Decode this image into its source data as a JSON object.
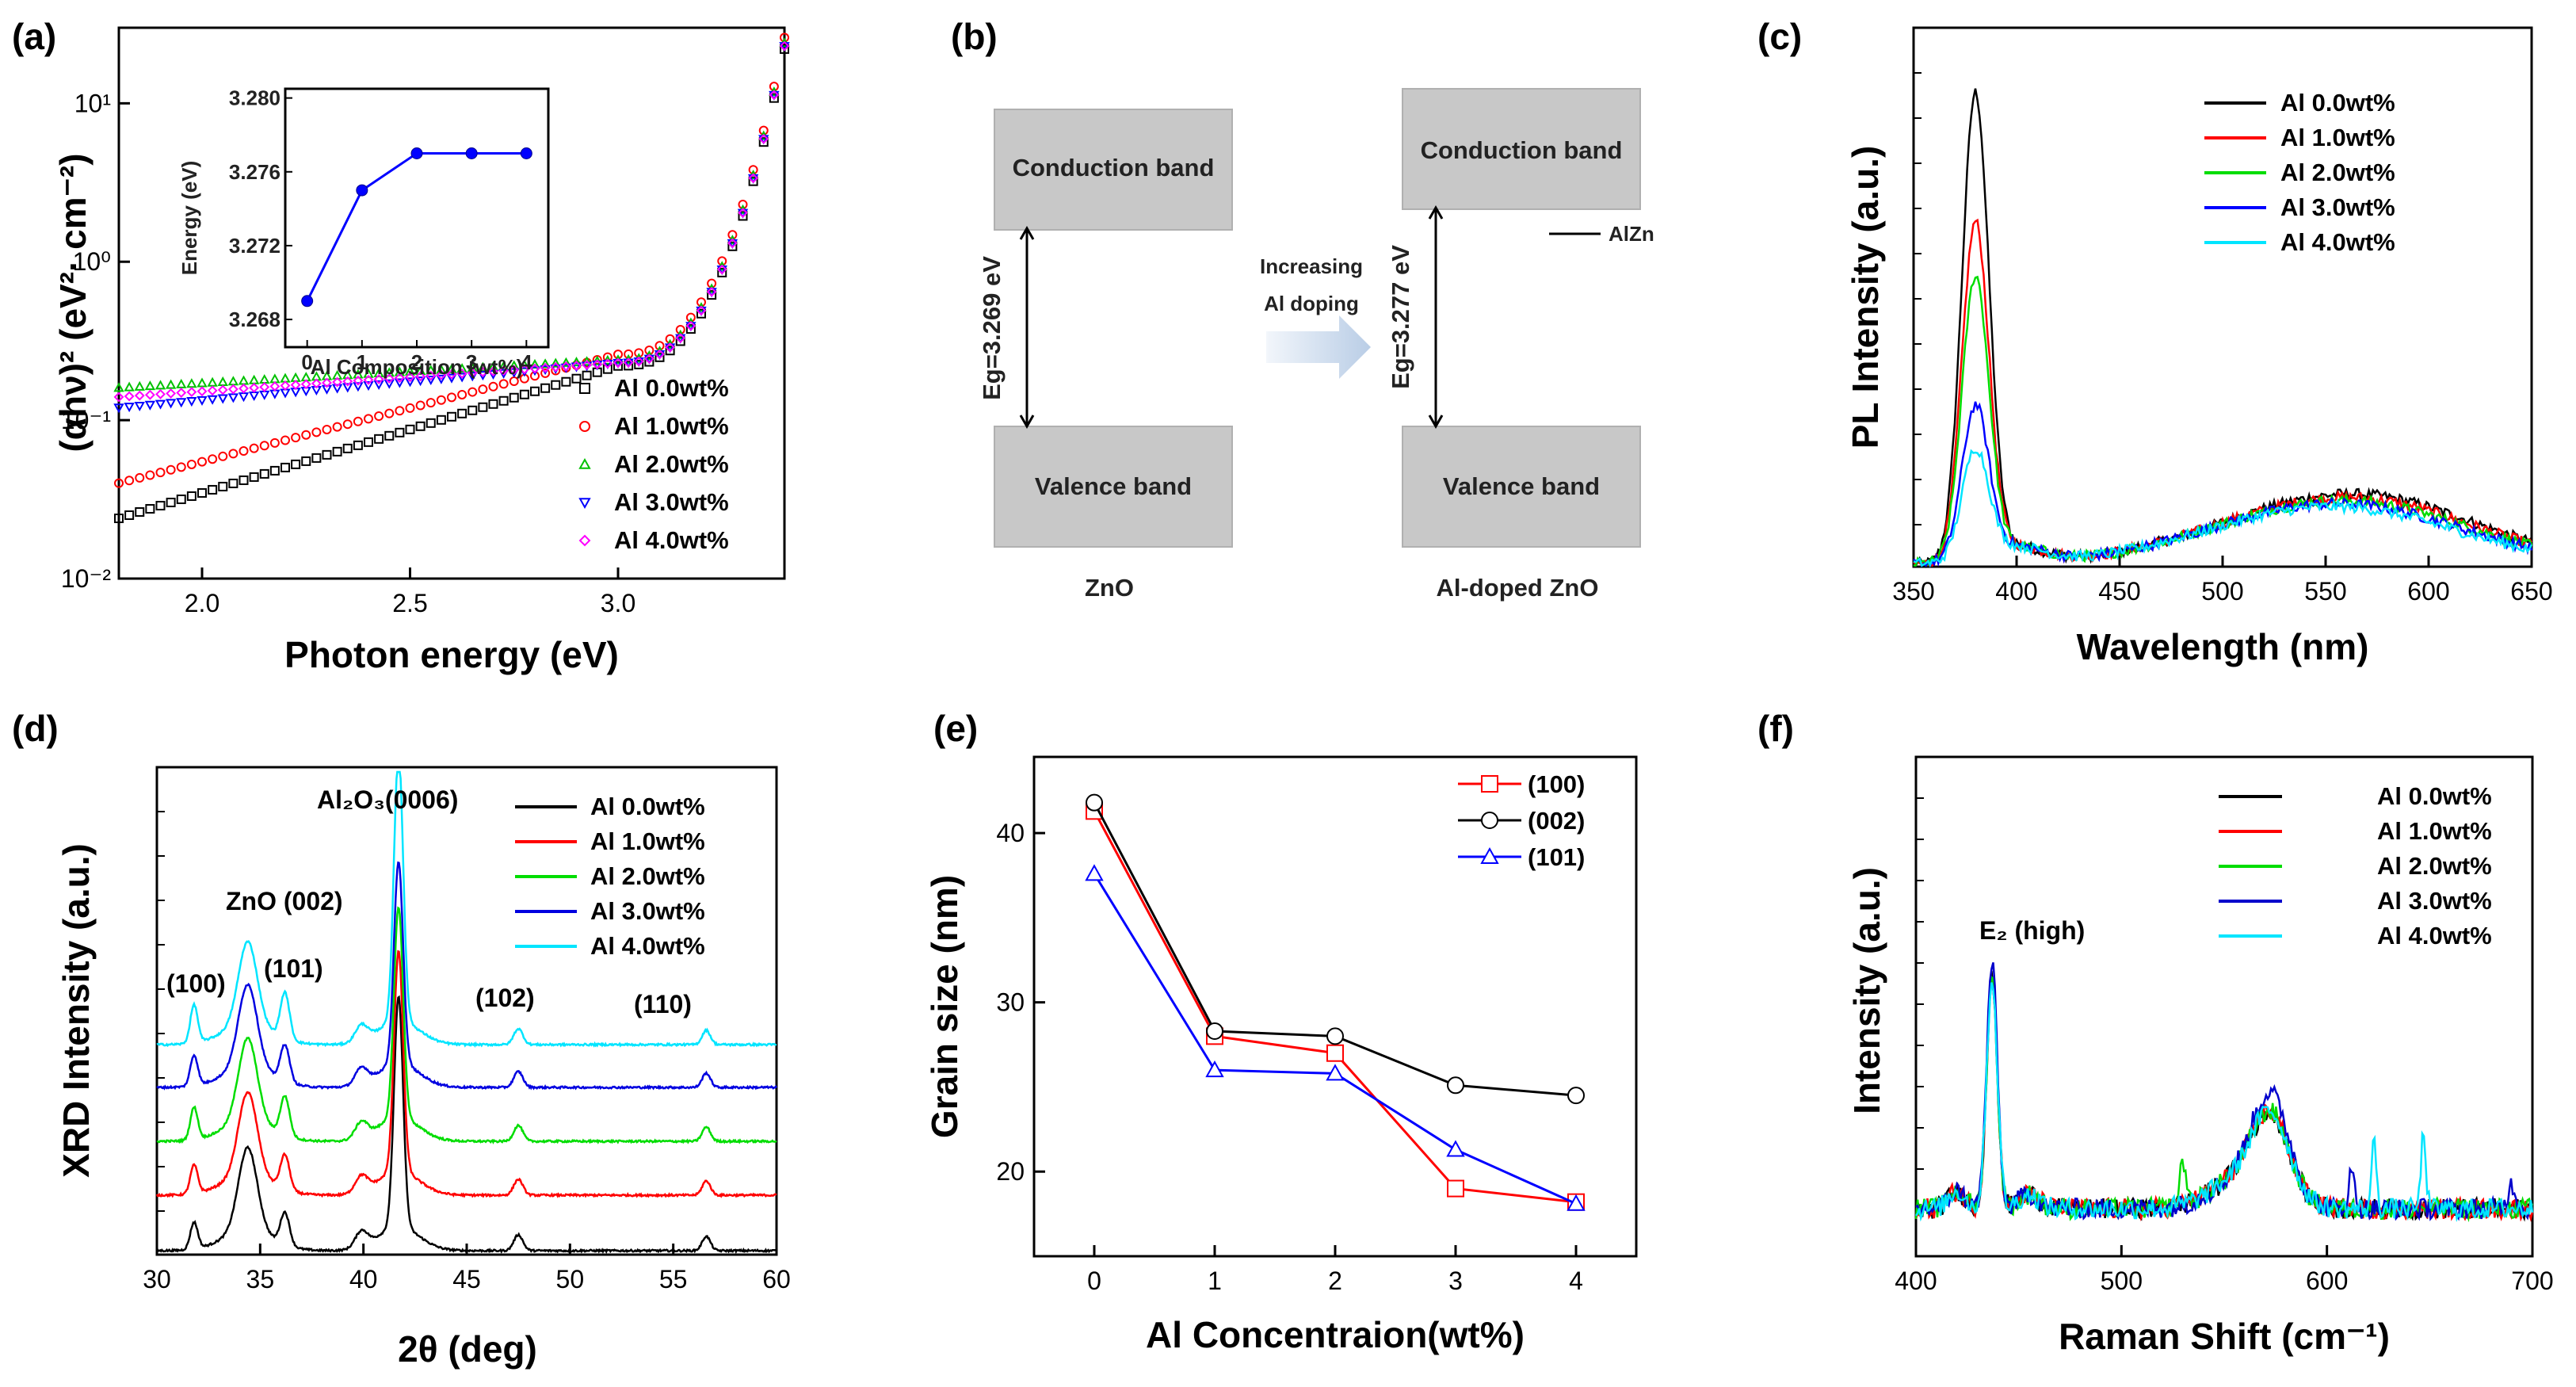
{
  "chart_data": [
    {
      "id": "a",
      "panel": "(a)",
      "type": "scatter",
      "yscale": "log",
      "xlabel": "Photon energy (eV)",
      "ylabel": "(αhν)² (eV²· cm⁻²)",
      "xlim": [
        1.8,
        3.4
      ],
      "ylim": [
        0.01,
        30
      ],
      "xticks": [
        "2.0",
        "2.5",
        "3.0"
      ],
      "yticks": [
        "10⁻²",
        "10⁻¹",
        "10⁰",
        "10¹"
      ],
      "legend_position": "bottom-right",
      "series": [
        {
          "name": "Al 0.0wt%",
          "color": "#000000",
          "marker": "square",
          "start": 0.024,
          "at3": 0.22
        },
        {
          "name": "Al 1.0wt%",
          "color": "#ff0000",
          "marker": "circle",
          "start": 0.04,
          "at3": 0.26
        },
        {
          "name": "Al 2.0wt%",
          "color": "#00c000",
          "marker": "triangle-up",
          "start": 0.16,
          "at3": 0.24
        },
        {
          "name": "Al 3.0wt%",
          "color": "#0000ff",
          "marker": "triangle-down",
          "start": 0.12,
          "at3": 0.23
        },
        {
          "name": "Al 4.0wt%",
          "color": "#ff00ff",
          "marker": "diamond",
          "start": 0.14,
          "at3": 0.23
        }
      ],
      "inset": {
        "type": "line",
        "xlabel": "Al Composition (wt%)",
        "ylabel": "Energy (eV)",
        "x": [
          0,
          1,
          2,
          3,
          4
        ],
        "y": [
          3.269,
          3.275,
          3.277,
          3.277,
          3.277
        ],
        "xlim": [
          -0.4,
          4.4
        ],
        "ylim": [
          3.2665,
          3.2805
        ],
        "xticks": [
          "0",
          "1",
          "2",
          "3",
          "4"
        ],
        "yticks": [
          "3.268",
          "3.272",
          "3.276",
          "3.280"
        ],
        "color": "#0000ff"
      }
    },
    {
      "id": "c",
      "panel": "(c)",
      "type": "line",
      "xlabel": "Wavelength (nm)",
      "ylabel": "PL Intensity (a.u.)",
      "xlim": [
        350,
        650
      ],
      "xticks": [
        "350",
        "400",
        "450",
        "500",
        "550",
        "600",
        "650"
      ],
      "peak_nm": 380,
      "legend_position": "top-right",
      "series": [
        {
          "name": "Al 0.0wt%",
          "color": "#000000",
          "peak": 0.86
        },
        {
          "name": "Al 1.0wt%",
          "color": "#ff0000",
          "peak": 0.62
        },
        {
          "name": "Al 2.0wt%",
          "color": "#00dd00",
          "peak": 0.52
        },
        {
          "name": "Al 3.0wt%",
          "color": "#0000ff",
          "peak": 0.28
        },
        {
          "name": "Al 4.0wt%",
          "color": "#00e5ff",
          "peak": 0.2
        }
      ]
    },
    {
      "id": "d",
      "panel": "(d)",
      "type": "line",
      "xlabel": "2θ (deg)",
      "ylabel": "XRD Intensity (a.u.)",
      "xlim": [
        30,
        60
      ],
      "xticks": [
        "30",
        "35",
        "40",
        "45",
        "50",
        "55",
        "60"
      ],
      "legend_position": "top-right",
      "peaks": {
        "ZnO (100)": 31.8,
        "ZnO (002)": 34.4,
        "ZnO (101)": 36.2,
        "Al2O3 (0006)": 41.7,
        "ZnO (102)": 47.5,
        "ZnO (110)": 56.6
      },
      "annotations": [
        "Al₂O₃(0006)",
        "ZnO (002)",
        "(100)",
        "(101)",
        "(102)",
        "(110)"
      ],
      "series": [
        {
          "name": "Al 0.0wt%",
          "color": "#000000"
        },
        {
          "name": "Al 1.0wt%",
          "color": "#ff0000"
        },
        {
          "name": "Al 2.0wt%",
          "color": "#00dd00"
        },
        {
          "name": "Al 3.0wt%",
          "color": "#0000e0"
        },
        {
          "name": "Al 4.0wt%",
          "color": "#00e5ff"
        }
      ]
    },
    {
      "id": "e",
      "panel": "(e)",
      "type": "line",
      "xlabel": "Al Concentraion(wt%)",
      "ylabel": "Grain size (nm)",
      "xlim": [
        -0.5,
        4.5
      ],
      "ylim": [
        15,
        44.5
      ],
      "xticks": [
        "0",
        "1",
        "2",
        "3",
        "4"
      ],
      "yticks": [
        "20",
        "30",
        "40"
      ],
      "legend_position": "top-right",
      "categories": [
        0,
        1,
        2,
        3,
        4
      ],
      "series": [
        {
          "name": "(100)",
          "color": "#ff0000",
          "marker": "square",
          "values": [
            41.3,
            28.0,
            27.0,
            19.0,
            18.2
          ]
        },
        {
          "name": "(002)",
          "color": "#000000",
          "marker": "circle",
          "values": [
            41.8,
            28.3,
            28.0,
            25.1,
            24.5
          ]
        },
        {
          "name": "(101)",
          "color": "#0000ff",
          "marker": "triangle-up",
          "values": [
            37.6,
            26.0,
            25.8,
            21.3,
            18.1
          ]
        }
      ]
    },
    {
      "id": "f",
      "panel": "(f)",
      "type": "line",
      "xlabel": "Raman Shift (cm⁻¹)",
      "ylabel": "Intensity (a.u.)",
      "xlim": [
        400,
        700
      ],
      "xticks": [
        "400",
        "500",
        "600",
        "700"
      ],
      "peak_label": "E₂ (high)",
      "peak_cm": 437,
      "legend_position": "top-right",
      "series": [
        {
          "name": "Al 0.0wt%",
          "color": "#000000"
        },
        {
          "name": "Al 1.0wt%",
          "color": "#ff0000"
        },
        {
          "name": "Al 2.0wt%",
          "color": "#00dd00"
        },
        {
          "name": "Al 3.0wt%",
          "color": "#0000cc"
        },
        {
          "name": "Al 4.0wt%",
          "color": "#00e5ff"
        }
      ]
    }
  ],
  "diagram": {
    "panel": "(b)",
    "left": {
      "conduction": "Conduction band",
      "valence": "Valence band",
      "gap": "Eg=3.269 eV",
      "caption": "ZnO"
    },
    "right": {
      "conduction": "Conduction band",
      "valence": "Valence band",
      "gap": "Eg=3.277 eV",
      "caption": "Al-doped ZnO",
      "level": "AlZn"
    },
    "arrow_text_line1": "Increasing",
    "arrow_text_line2": "Al doping",
    "box_color": "#c8c8c8"
  }
}
